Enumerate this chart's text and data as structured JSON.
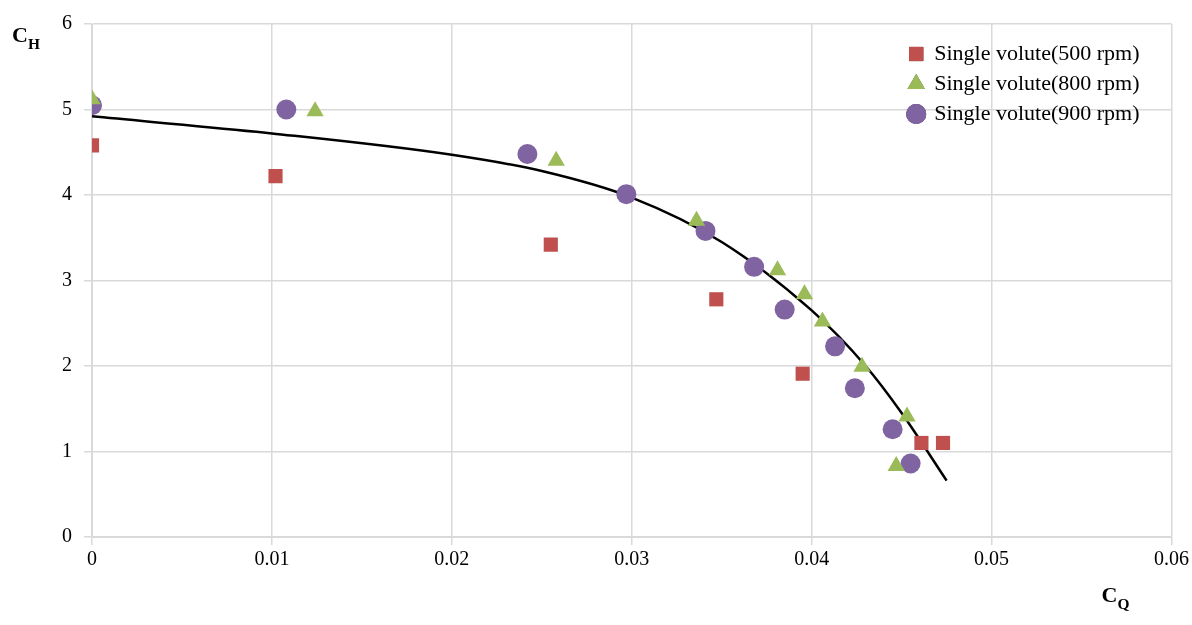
{
  "chart_data": {
    "type": "scatter",
    "xlabel": "C$_{Q}$",
    "ylabel": "C$_{H}$",
    "xlim": [
      0,
      0.06
    ],
    "xticks": [
      0,
      0.01,
      0.02,
      0.03,
      0.04,
      0.05,
      0.06
    ],
    "ylim": [
      0,
      6
    ],
    "yticks": [
      0,
      1,
      2,
      3,
      4,
      5,
      6
    ],
    "grid": true,
    "legend": "top right",
    "series": [
      {
        "name": "Single volute(500 rpm)",
        "color": "#c0504d",
        "marker": "square",
        "x": [
          0,
          0.0102,
          0.0255,
          0.0347,
          0.0395,
          0.0461,
          0.0473
        ],
        "values": [
          4.58,
          4.22,
          3.42,
          2.78,
          1.91,
          1.1,
          1.1
        ]
      },
      {
        "name": "Single volute(800 rpm)",
        "color": "#9bbb59",
        "marker": "triangle",
        "x": [
          0,
          0.0124,
          0.0258,
          0.0336,
          0.0381,
          0.0396,
          0.0406,
          0.0428,
          0.0453,
          0.0447
        ],
        "values": [
          5.12,
          4.98,
          4.4,
          3.7,
          3.12,
          2.84,
          2.52,
          1.99,
          1.41,
          0.83
        ]
      },
      {
        "name": "Single volute(900 rpm)",
        "color": "#8064a2",
        "marker": "circle",
        "x": [
          0,
          0.0108,
          0.0242,
          0.0297,
          0.0341,
          0.0368,
          0.0385,
          0.0413,
          0.0424,
          0.0445,
          0.0455
        ],
        "values": [
          5.05,
          5.0,
          4.48,
          4.01,
          3.58,
          3.16,
          2.66,
          2.23,
          1.74,
          1.26,
          0.86
        ]
      },
      {
        "type": "line",
        "color": "#000000",
        "marker": "none",
        "x": [
          0,
          0.01,
          0.02,
          0.025,
          0.03,
          0.035,
          0.04,
          0.043,
          0.045,
          0.0475
        ],
        "values": [
          4.92,
          4.72,
          4.47,
          4.28,
          3.97,
          3.45,
          2.65,
          2.0,
          1.45,
          0.66
        ]
      }
    ]
  }
}
